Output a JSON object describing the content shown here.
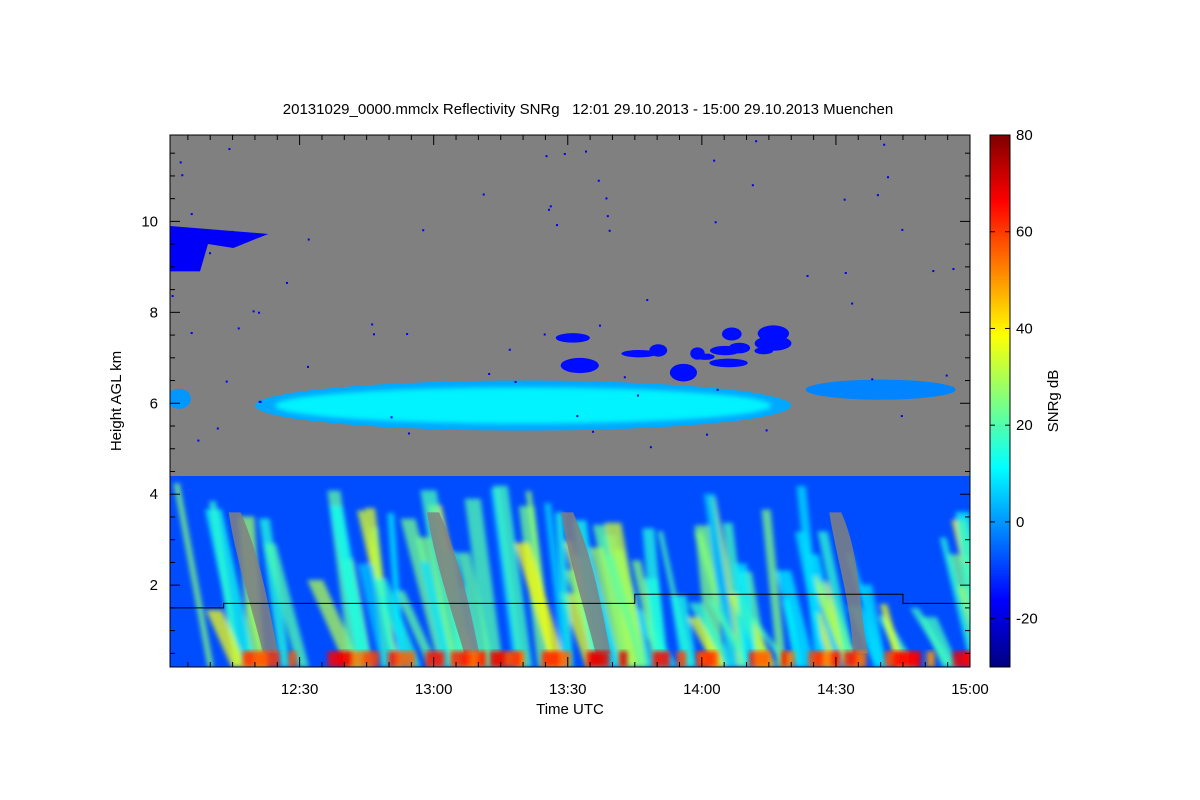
{
  "chart_data": {
    "type": "heatmap",
    "title": "20131029_0000.mmclx Reflectivity SNRg   12:01 29.10.2013 - 15:00 29.10.2013 Muenchen",
    "xlabel": "Time UTC",
    "ylabel": "Height AGL km",
    "xlim": [
      "12:01",
      "15:00"
    ],
    "ylim": [
      0.2,
      11.9
    ],
    "x_ticks": [
      "12:30",
      "13:00",
      "13:30",
      "14:00",
      "14:30",
      "15:00"
    ],
    "y_ticks": [
      2,
      4,
      6,
      8,
      10
    ],
    "colorbar": {
      "label": "SNRg dB",
      "range": [
        -30,
        80
      ],
      "ticks": [
        -20,
        0,
        20,
        40,
        60,
        80
      ],
      "colormap": "jet"
    },
    "background_color": "#808080",
    "cloud_layers": [
      {
        "name": "lower precipitation layer",
        "time_start": "12:01",
        "time_end": "15:00",
        "height_bottom_km": 0.2,
        "height_top_km": 4.4
      },
      {
        "name": "mid-level layer",
        "time_start": "12:20",
        "time_end": "14:20",
        "height_bottom_km": 5.4,
        "height_top_km": 6.5
      },
      {
        "name": "upper thin layer",
        "time_start": "13:27",
        "time_end": "14:20",
        "height_bottom_km": 6.4,
        "height_top_km": 7.6
      },
      {
        "name": "cirrus patch",
        "time_start": "12:01",
        "time_end": "12:23",
        "height_bottom_km": 8.9,
        "height_top_km": 9.9
      }
    ],
    "line_series": {
      "name": "",
      "x": [
        "12:01",
        "12:13",
        "12:13",
        "13:45",
        "13:45",
        "14:45",
        "14:45",
        "15:00"
      ],
      "y": [
        1.5,
        1.5,
        1.6,
        1.6,
        1.8,
        1.8,
        1.6,
        1.6
      ]
    }
  }
}
